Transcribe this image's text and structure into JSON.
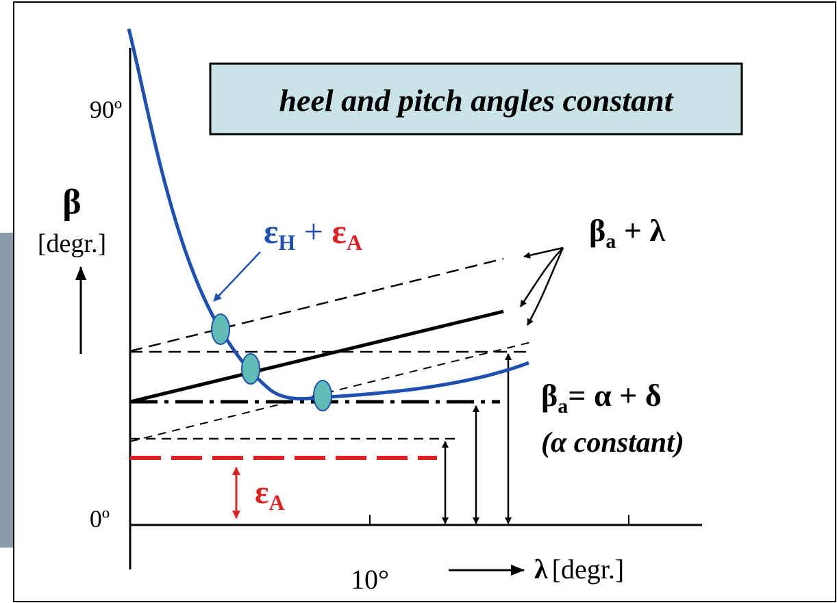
{
  "title": "heel and pitch angles constant",
  "y_axis": {
    "symbol": "β",
    "unit": "[degr.]",
    "ticks": [
      "90º",
      "0º"
    ]
  },
  "x_axis": {
    "symbol": "λ",
    "unit": "[degr.]",
    "ticks": [
      "10°"
    ]
  },
  "curve_label": [
    "ε",
    "H",
    " + ",
    "ε",
    "A"
  ],
  "line_label": [
    "β",
    "a",
    " + λ"
  ],
  "equation": [
    "β",
    "a",
    "= α + δ"
  ],
  "equation_note": "(α constant)",
  "offset_label": [
    "ε",
    "A"
  ]
}
